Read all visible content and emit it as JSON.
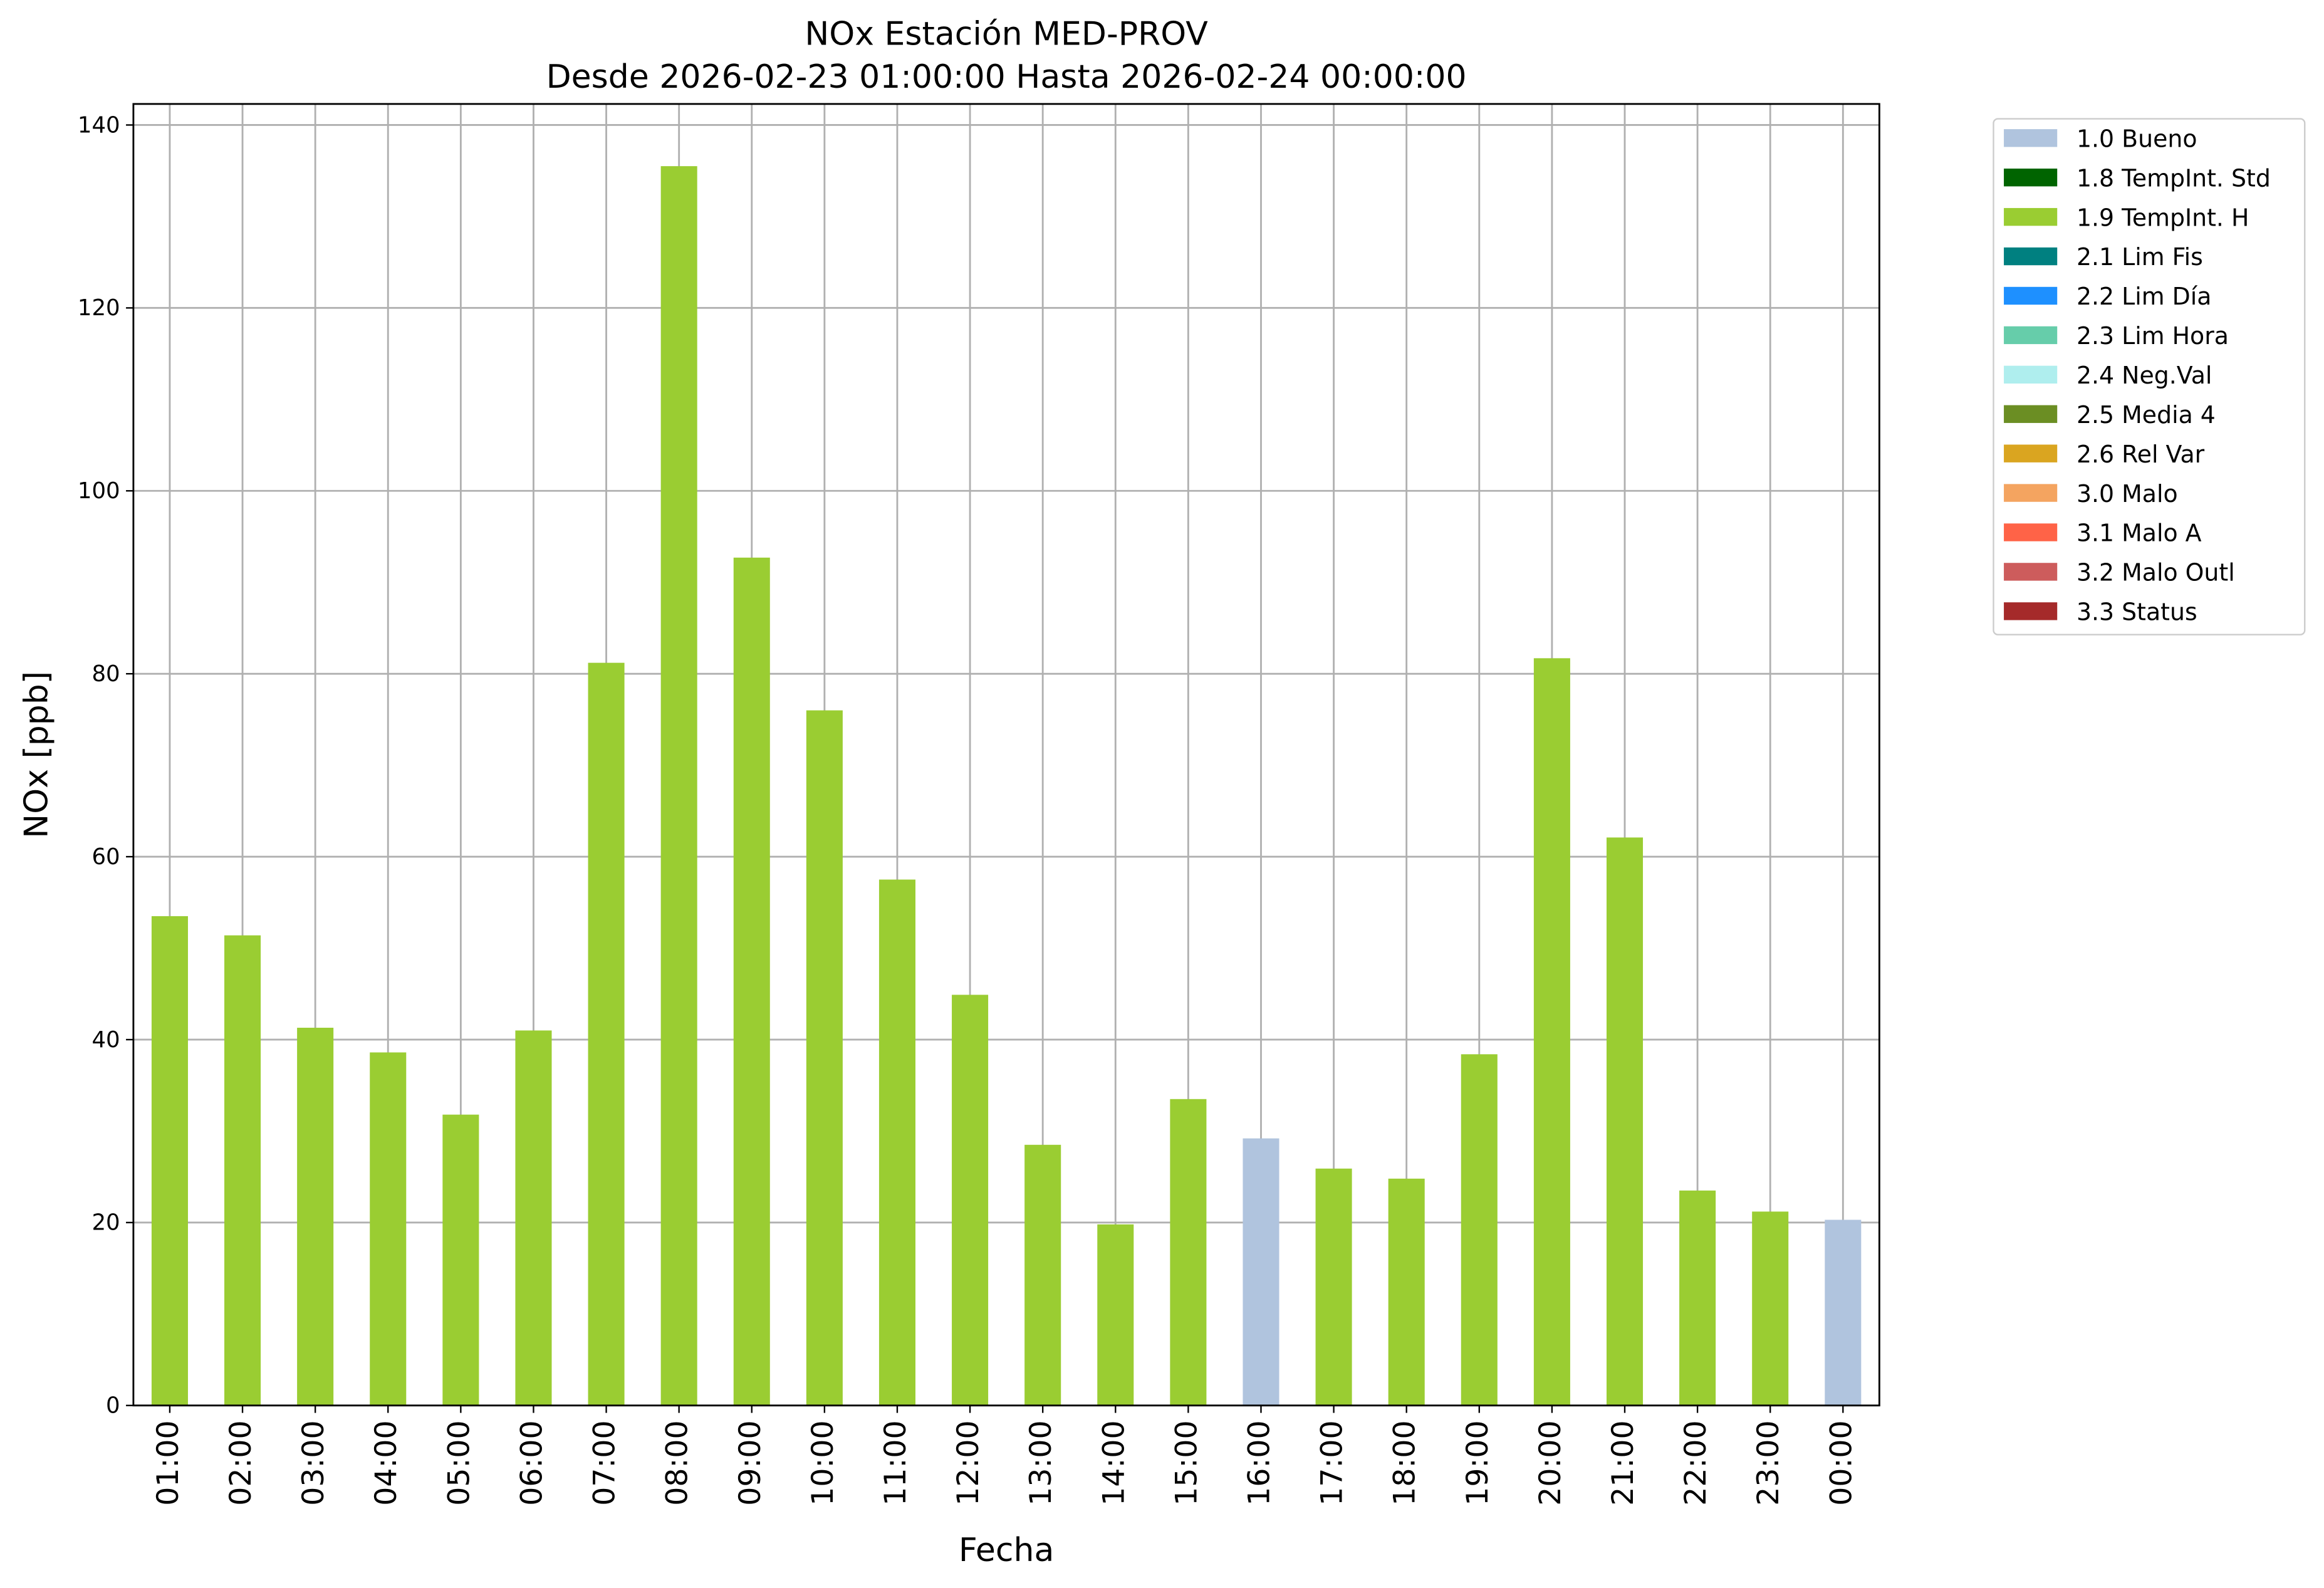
{
  "chart_data": {
    "type": "bar",
    "stacked": true,
    "title": "NOx Estación MED-PROV",
    "subtitle": "Desde 2026-02-23 01:00:00 Hasta 2026-02-24 00:00:00",
    "xlabel": "Fecha",
    "ylabel": "NOx [ppb]",
    "categories": [
      "01:00",
      "02:00",
      "03:00",
      "04:00",
      "05:00",
      "06:00",
      "07:00",
      "08:00",
      "09:00",
      "10:00",
      "11:00",
      "12:00",
      "13:00",
      "14:00",
      "15:00",
      "16:00",
      "17:00",
      "18:00",
      "19:00",
      "20:00",
      "21:00",
      "22:00",
      "23:00",
      "00:00"
    ],
    "series": [
      {
        "name": "1.0 Bueno",
        "color": "#b0c4de",
        "values": [
          null,
          null,
          null,
          null,
          null,
          null,
          null,
          null,
          null,
          null,
          null,
          null,
          null,
          null,
          null,
          29.2,
          null,
          null,
          null,
          null,
          null,
          null,
          null,
          20.3
        ]
      },
      {
        "name": "1.8 TempInt. Std",
        "color": "#006400",
        "values": [
          null,
          null,
          null,
          null,
          null,
          null,
          null,
          null,
          null,
          null,
          null,
          null,
          null,
          null,
          null,
          null,
          null,
          null,
          null,
          null,
          null,
          null,
          null,
          null
        ]
      },
      {
        "name": "1.9 TempInt. H",
        "color": "#9acd32",
        "values": [
          53.5,
          51.4,
          41.3,
          38.6,
          31.8,
          41.0,
          81.2,
          135.5,
          92.7,
          76.0,
          57.5,
          44.9,
          28.5,
          19.8,
          33.5,
          null,
          25.9,
          24.8,
          38.4,
          81.7,
          62.1,
          23.5,
          21.2,
          null
        ]
      },
      {
        "name": "2.1 Lim Fis",
        "color": "#008080",
        "values": [
          null,
          null,
          null,
          null,
          null,
          null,
          null,
          null,
          null,
          null,
          null,
          null,
          null,
          null,
          null,
          null,
          null,
          null,
          null,
          null,
          null,
          null,
          null,
          null
        ]
      },
      {
        "name": "2.2 Lim Día",
        "color": "#1e90ff",
        "values": [
          null,
          null,
          null,
          null,
          null,
          null,
          null,
          null,
          null,
          null,
          null,
          null,
          null,
          null,
          null,
          null,
          null,
          null,
          null,
          null,
          null,
          null,
          null,
          null
        ]
      },
      {
        "name": "2.3 Lim Hora",
        "color": "#66cdaa",
        "values": [
          null,
          null,
          null,
          null,
          null,
          null,
          null,
          null,
          null,
          null,
          null,
          null,
          null,
          null,
          null,
          null,
          null,
          null,
          null,
          null,
          null,
          null,
          null,
          null
        ]
      },
      {
        "name": "2.4 Neg.Val",
        "color": "#afeeee",
        "values": [
          null,
          null,
          null,
          null,
          null,
          null,
          null,
          null,
          null,
          null,
          null,
          null,
          null,
          null,
          null,
          null,
          null,
          null,
          null,
          null,
          null,
          null,
          null,
          null
        ]
      },
      {
        "name": "2.5 Media 4",
        "color": "#6b8e23",
        "values": [
          null,
          null,
          null,
          null,
          null,
          null,
          null,
          null,
          null,
          null,
          null,
          null,
          null,
          null,
          null,
          null,
          null,
          null,
          null,
          null,
          null,
          null,
          null,
          null
        ]
      },
      {
        "name": "2.6 Rel Var",
        "color": "#daa520",
        "values": [
          null,
          null,
          null,
          null,
          null,
          null,
          null,
          null,
          null,
          null,
          null,
          null,
          null,
          null,
          null,
          null,
          null,
          null,
          null,
          null,
          null,
          null,
          null,
          null
        ]
      },
      {
        "name": "3.0 Malo",
        "color": "#f4a460",
        "values": [
          null,
          null,
          null,
          null,
          null,
          null,
          null,
          null,
          null,
          null,
          null,
          null,
          null,
          null,
          null,
          null,
          null,
          null,
          null,
          null,
          null,
          null,
          null,
          null
        ]
      },
      {
        "name": "3.1 Malo A",
        "color": "#ff6347",
        "values": [
          null,
          null,
          null,
          null,
          null,
          null,
          null,
          null,
          null,
          null,
          null,
          null,
          null,
          null,
          null,
          null,
          null,
          null,
          null,
          null,
          null,
          null,
          null,
          null
        ]
      },
      {
        "name": "3.2 Malo Outl",
        "color": "#cd5c5c",
        "values": [
          null,
          null,
          null,
          null,
          null,
          null,
          null,
          null,
          null,
          null,
          null,
          null,
          null,
          null,
          null,
          null,
          null,
          null,
          null,
          null,
          null,
          null,
          null,
          null
        ]
      },
      {
        "name": "3.3 Status",
        "color": "#a52a2a",
        "values": [
          null,
          null,
          null,
          null,
          null,
          null,
          null,
          null,
          null,
          null,
          null,
          null,
          null,
          null,
          null,
          null,
          null,
          null,
          null,
          null,
          null,
          null,
          null,
          null
        ]
      }
    ],
    "ylim": [
      0,
      142.3
    ],
    "yticks": [
      0,
      20,
      40,
      60,
      80,
      100,
      120,
      140
    ],
    "grid": true,
    "legend": "outside upper right"
  }
}
